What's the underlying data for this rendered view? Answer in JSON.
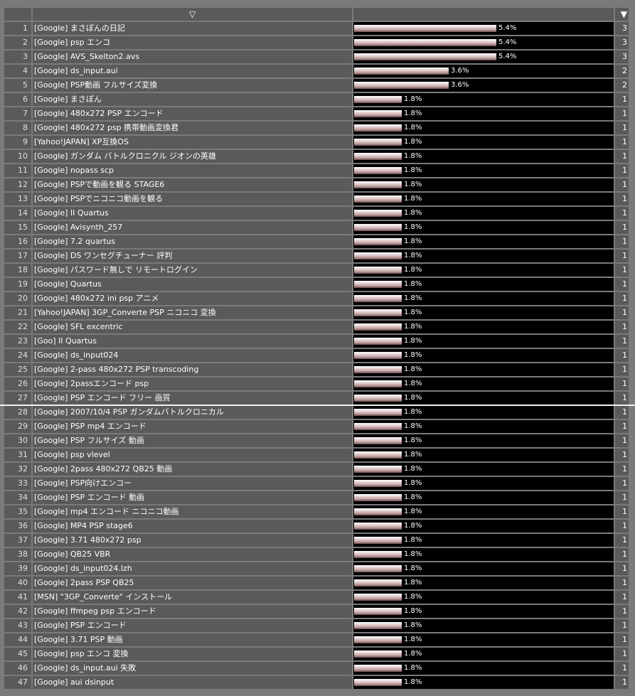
{
  "header": {
    "sort_indicator": "▽",
    "sort_button": "▼"
  },
  "rows": [
    {
      "rank": "1",
      "term": "[Google] まさぽんの日記",
      "pct": "5.4%",
      "count": "3",
      "fraction": 0.054
    },
    {
      "rank": "2",
      "term": "[Google] psp エンコ",
      "pct": "5.4%",
      "count": "3",
      "fraction": 0.054
    },
    {
      "rank": "3",
      "term": "[Google] AVS_Skelton2.avs",
      "pct": "5.4%",
      "count": "3",
      "fraction": 0.054
    },
    {
      "rank": "4",
      "term": "[Google] ds_input.aui",
      "pct": "3.6%",
      "count": "2",
      "fraction": 0.036
    },
    {
      "rank": "5",
      "term": "[Google] PSP動画 フルサイズ変換",
      "pct": "3.6%",
      "count": "2",
      "fraction": 0.036
    },
    {
      "rank": "6",
      "term": "[Google] まさぽん",
      "pct": "1.8%",
      "count": "1",
      "fraction": 0.018
    },
    {
      "rank": "7",
      "term": "[Google] 480x272 PSP エンコード",
      "pct": "1.8%",
      "count": "1",
      "fraction": 0.018
    },
    {
      "rank": "8",
      "term": "[Google] 480x272 psp 携帯動画変換君",
      "pct": "1.8%",
      "count": "1",
      "fraction": 0.018
    },
    {
      "rank": "9",
      "term": "[Yahoo!JAPAN] XP互換OS",
      "pct": "1.8%",
      "count": "1",
      "fraction": 0.018
    },
    {
      "rank": "10",
      "term": "[Google] ガンダム バトルクロニクル ジオンの英雄",
      "pct": "1.8%",
      "count": "1",
      "fraction": 0.018
    },
    {
      "rank": "11",
      "term": "[Google] nopass scp",
      "pct": "1.8%",
      "count": "1",
      "fraction": 0.018
    },
    {
      "rank": "12",
      "term": "[Google] PSPで動画を観る STAGE6",
      "pct": "1.8%",
      "count": "1",
      "fraction": 0.018
    },
    {
      "rank": "13",
      "term": "[Google] PSPでニコニコ動画を観る",
      "pct": "1.8%",
      "count": "1",
      "fraction": 0.018
    },
    {
      "rank": "14",
      "term": "[Google] II Quartus",
      "pct": "1.8%",
      "count": "1",
      "fraction": 0.018
    },
    {
      "rank": "15",
      "term": "[Google] Avisynth_257",
      "pct": "1.8%",
      "count": "1",
      "fraction": 0.018
    },
    {
      "rank": "16",
      "term": "[Google] 7.2 quartus",
      "pct": "1.8%",
      "count": "1",
      "fraction": 0.018
    },
    {
      "rank": "17",
      "term": "[Google] DS ワンセグチューナー 評判",
      "pct": "1.8%",
      "count": "1",
      "fraction": 0.018
    },
    {
      "rank": "18",
      "term": "[Google] パスワード無しで リモートログイン",
      "pct": "1.8%",
      "count": "1",
      "fraction": 0.018
    },
    {
      "rank": "19",
      "term": "[Google] Quartus",
      "pct": "1.8%",
      "count": "1",
      "fraction": 0.018
    },
    {
      "rank": "20",
      "term": "[Google] 480x272 ini psp アニメ",
      "pct": "1.8%",
      "count": "1",
      "fraction": 0.018
    },
    {
      "rank": "21",
      "term": "[Yahoo!JAPAN] 3GP_Converte PSP ニコニコ 変換",
      "pct": "1.8%",
      "count": "1",
      "fraction": 0.018
    },
    {
      "rank": "22",
      "term": "[Google] SFL excentric",
      "pct": "1.8%",
      "count": "1",
      "fraction": 0.018
    },
    {
      "rank": "23",
      "term": "[Goo] II Quartus",
      "pct": "1.8%",
      "count": "1",
      "fraction": 0.018
    },
    {
      "rank": "24",
      "term": "[Google] ds_input024",
      "pct": "1.8%",
      "count": "1",
      "fraction": 0.018
    },
    {
      "rank": "25",
      "term": "[Google] 2-pass 480x272 PSP transcoding",
      "pct": "1.8%",
      "count": "1",
      "fraction": 0.018
    },
    {
      "rank": "26",
      "term": "[Google] 2passエンコード psp",
      "pct": "1.8%",
      "count": "1",
      "fraction": 0.018
    },
    {
      "rank": "27",
      "term": "[Google] PSP エンコード フリー 画質",
      "pct": "1.8%",
      "count": "1",
      "fraction": 0.018
    },
    {
      "rank": "28",
      "term": "[Google] 2007/10/4 PSP ガンダムバトルクロニカル",
      "pct": "1.8%",
      "count": "1",
      "fraction": 0.018
    },
    {
      "rank": "29",
      "term": "[Google] PSP mp4 エンコード",
      "pct": "1.8%",
      "count": "1",
      "fraction": 0.018
    },
    {
      "rank": "30",
      "term": "[Google] PSP フルサイズ 動画",
      "pct": "1.8%",
      "count": "1",
      "fraction": 0.018
    },
    {
      "rank": "31",
      "term": "[Google] psp vlevel",
      "pct": "1.8%",
      "count": "1",
      "fraction": 0.018
    },
    {
      "rank": "32",
      "term": "[Google] 2pass 480x272 QB25 動画",
      "pct": "1.8%",
      "count": "1",
      "fraction": 0.018
    },
    {
      "rank": "33",
      "term": "[Google] PSP向けエンコー",
      "pct": "1.8%",
      "count": "1",
      "fraction": 0.018
    },
    {
      "rank": "34",
      "term": "[Google] PSP エンコード 動画",
      "pct": "1.8%",
      "count": "1",
      "fraction": 0.018
    },
    {
      "rank": "35",
      "term": "[Google] mp4 エンコード ニコニコ動画",
      "pct": "1.8%",
      "count": "1",
      "fraction": 0.018
    },
    {
      "rank": "36",
      "term": "[Google] MP4 PSP stage6",
      "pct": "1.8%",
      "count": "1",
      "fraction": 0.018
    },
    {
      "rank": "37",
      "term": "[Google] 3.71 480x272 psp",
      "pct": "1.8%",
      "count": "1",
      "fraction": 0.018
    },
    {
      "rank": "38",
      "term": "[Google] QB25 VBR",
      "pct": "1.8%",
      "count": "1",
      "fraction": 0.018
    },
    {
      "rank": "39",
      "term": "[Google] ds_input024.lzh",
      "pct": "1.8%",
      "count": "1",
      "fraction": 0.018
    },
    {
      "rank": "40",
      "term": "[Google] 2pass PSP QB25",
      "pct": "1.8%",
      "count": "1",
      "fraction": 0.018
    },
    {
      "rank": "41",
      "term": "[MSN] \"3GP_Converte\" インストール",
      "pct": "1.8%",
      "count": "1",
      "fraction": 0.018
    },
    {
      "rank": "42",
      "term": "[Google] ffmpeg psp エンコード",
      "pct": "1.8%",
      "count": "1",
      "fraction": 0.018
    },
    {
      "rank": "43",
      "term": "[Google] PSP エンコード",
      "pct": "1.8%",
      "count": "1",
      "fraction": 0.018
    },
    {
      "rank": "44",
      "term": "[Google] 3.71 PSP 動画",
      "pct": "1.8%",
      "count": "1",
      "fraction": 0.018
    },
    {
      "rank": "45",
      "term": "[Google] psp エンコ 変換",
      "pct": "1.8%",
      "count": "1",
      "fraction": 0.018
    },
    {
      "rank": "46",
      "term": "[Google] ds_input.aui 失敗",
      "pct": "1.8%",
      "count": "1",
      "fraction": 0.018
    },
    {
      "rank": "47",
      "term": "[Google] aui dsinput",
      "pct": "1.8%",
      "count": "1",
      "fraction": 0.018
    }
  ]
}
